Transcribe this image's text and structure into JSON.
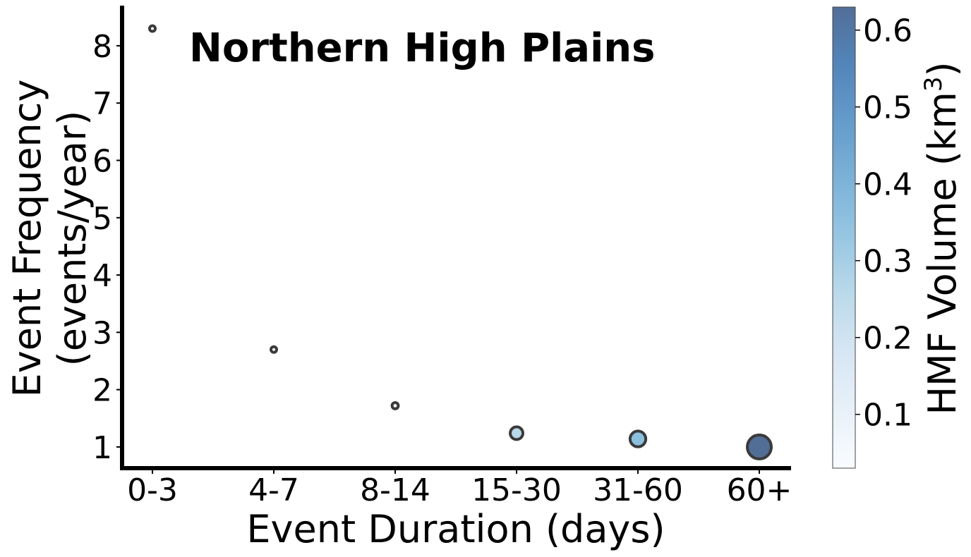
{
  "chart_data": {
    "type": "scatter",
    "title": "Northern High Plains",
    "xlabel": "Event Duration (days)",
    "ylabel_line1": "Event Frequency",
    "ylabel_line2": "(events/year)",
    "categories": [
      "0-3",
      "4-7",
      "8-14",
      "15-30",
      "31-60",
      "60+"
    ],
    "points": [
      {
        "category": "0-3",
        "frequency": 8.3,
        "volume": 0.03
      },
      {
        "category": "4-7",
        "frequency": 2.7,
        "volume": 0.03
      },
      {
        "category": "8-14",
        "frequency": 1.72,
        "volume": 0.05
      },
      {
        "category": "15-30",
        "frequency": 1.24,
        "volume": 0.26
      },
      {
        "category": "31-60",
        "frequency": 1.14,
        "volume": 0.36
      },
      {
        "category": "60+",
        "frequency": 1.0,
        "volume": 0.63
      }
    ],
    "yticks": [
      "1",
      "2",
      "3",
      "4",
      "5",
      "6",
      "7",
      "8"
    ],
    "ylim": [
      0.63,
      8.7
    ],
    "colorbar": {
      "label": "HMF Volume (km",
      "label_superscript": "3",
      "label_close": ")",
      "ticks": [
        "0.1",
        "0.2",
        "0.3",
        "0.4",
        "0.5",
        "0.6"
      ],
      "range": [
        0.03,
        0.63
      ],
      "colormap": "Blues",
      "colors": [
        "#f7fbff",
        "#deebf7",
        "#c6dbef",
        "#9ecae1",
        "#6baed6",
        "#4292c6",
        "#2171b5",
        "#08519c",
        "#08306b"
      ]
    }
  }
}
